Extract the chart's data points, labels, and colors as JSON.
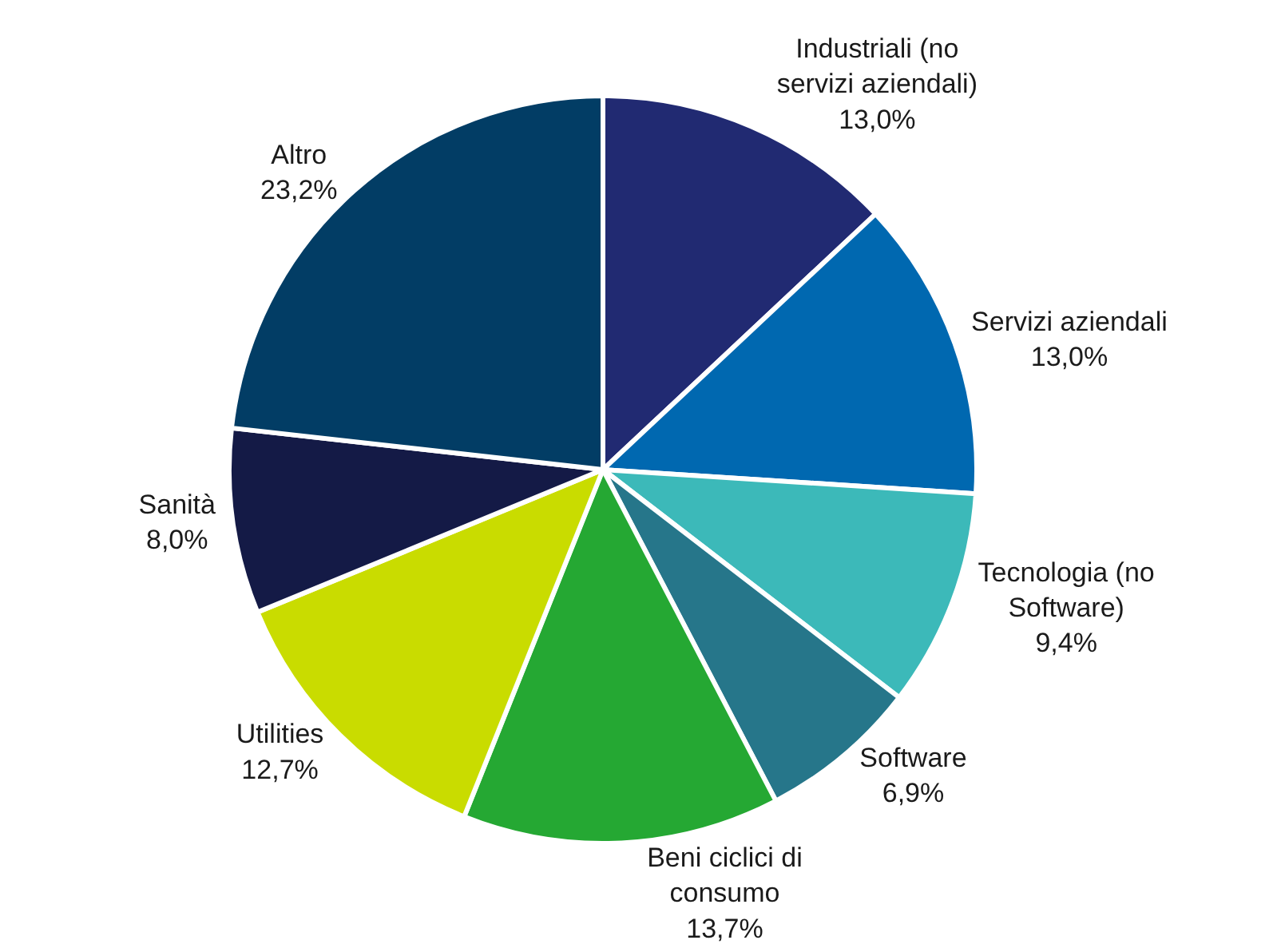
{
  "chart_data": {
    "type": "pie",
    "categories": [
      "Industriali (no servizi aziendali)",
      "Servizi aziendali",
      "Tecnologia (no Software)",
      "Software",
      "Beni ciclici di consumo",
      "Utilities",
      "Sanità",
      "Altro"
    ],
    "values": [
      13.0,
      13.0,
      9.4,
      6.9,
      13.7,
      12.7,
      8.0,
      23.2
    ],
    "value_labels": [
      "13,0%",
      "13,0%",
      "9,4%",
      "6,9%",
      "13,7%",
      "12,7%",
      "8,0%",
      "23,2%"
    ],
    "colors": [
      "#212a72",
      "#0068b0",
      "#3cb9b9",
      "#26768a",
      "#25a833",
      "#c9dc00",
      "#141a46",
      "#023d65"
    ],
    "legend": false
  }
}
